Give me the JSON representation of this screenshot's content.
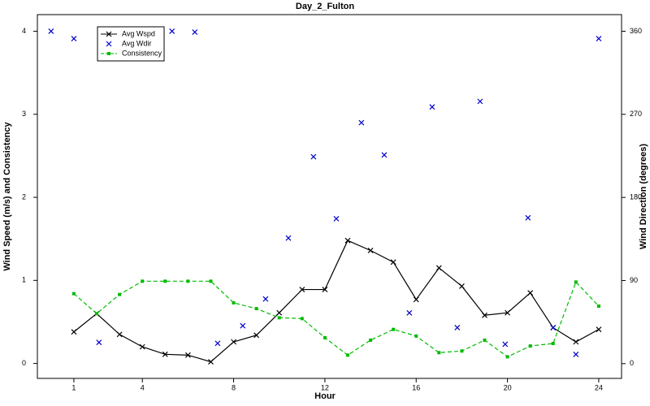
{
  "chart_data": {
    "type": "line",
    "title": "Day_2_Fulton",
    "x_label": "Hour",
    "y_label": "Wind Speed (m/s) and Consistency",
    "y2_label": "Wind Direction (degrees)",
    "x": [
      1,
      2,
      3,
      4,
      5,
      6,
      7,
      8,
      9,
      10,
      11,
      12,
      13,
      14,
      15,
      16,
      17,
      18,
      19,
      20,
      21,
      22,
      23,
      24
    ],
    "series": [
      {
        "name": "Avg Wspd",
        "color": "#000000",
        "marker": "x",
        "line": "solid",
        "values": [
          0.38,
          0.6,
          0.35,
          0.2,
          0.11,
          0.1,
          0.02,
          0.26,
          0.34,
          0.61,
          0.89,
          0.89,
          1.48,
          1.36,
          1.22,
          0.77,
          1.15,
          0.93,
          0.58,
          0.61,
          0.85,
          0.43,
          0.26,
          0.41
        ]
      },
      {
        "name": "Avg Wdir",
        "color": "#0000cc",
        "marker": "x",
        "line": "none",
        "axis": "y2",
        "x": [
          0,
          1,
          2.1,
          5.3,
          6.3,
          7.3,
          8.4,
          9.4,
          10.4,
          11.5,
          12.5,
          13.6,
          14.6,
          15.7,
          16.7,
          17.8,
          18.8,
          19.9,
          20.9,
          22,
          23,
          24
        ],
        "values": [
          360,
          352,
          23,
          360,
          359,
          22,
          41,
          70,
          136,
          224,
          157,
          261,
          226,
          55,
          278,
          39,
          284,
          21,
          158,
          39,
          10,
          352
        ]
      },
      {
        "name": "Consistency",
        "color": "#00bb00",
        "marker": "square",
        "line": "dashed",
        "values": [
          0.84,
          0.6,
          0.83,
          0.99,
          0.99,
          0.99,
          0.99,
          0.73,
          0.66,
          0.55,
          0.54,
          0.31,
          0.1,
          0.28,
          0.41,
          0.33,
          0.13,
          0.15,
          0.28,
          0.08,
          0.21,
          0.24,
          0.98,
          0.69
        ]
      }
    ],
    "xlim": [
      -0.6,
      25
    ],
    "xticks": [
      1,
      4,
      8,
      12,
      16,
      20,
      24
    ],
    "ylim": [
      -0.18,
      4.2
    ],
    "yticks": [
      0,
      1,
      2,
      3,
      4
    ],
    "y2lim": [
      -16,
      378
    ],
    "y2ticks": [
      0,
      90,
      180,
      270,
      360
    ],
    "grid": false,
    "legend": "top-left"
  }
}
